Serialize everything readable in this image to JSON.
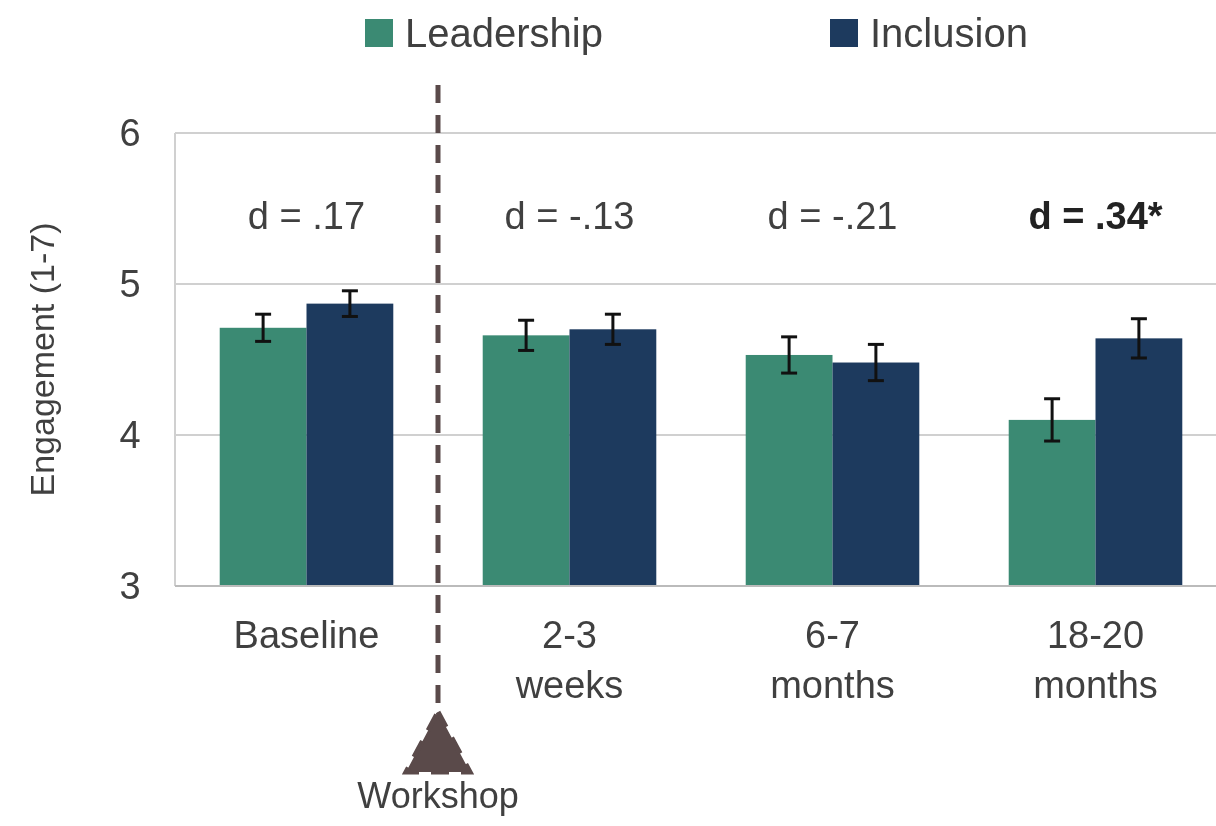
{
  "chart_data": {
    "type": "bar",
    "ylabel": "Engagement (1-7)",
    "categories": [
      "Baseline",
      "2-3 weeks",
      "6-7 months",
      "18-20 months"
    ],
    "series": [
      {
        "name": "Leadership",
        "color": "#3b8a73",
        "values": [
          4.71,
          4.66,
          4.53,
          4.1
        ],
        "errors": [
          0.09,
          0.1,
          0.12,
          0.14
        ]
      },
      {
        "name": "Inclusion",
        "color": "#1d3a5e",
        "values": [
          4.87,
          4.7,
          4.48,
          4.64
        ],
        "errors": [
          0.085,
          0.1,
          0.12,
          0.13
        ]
      }
    ],
    "ylim": [
      3,
      6
    ],
    "yticks": [
      3,
      4,
      5,
      6
    ],
    "grid": "y",
    "legend": "top",
    "annotations": [
      "d = .17",
      "d = -.13",
      "d = -.21",
      "d = .34*",
      "Workshop"
    ]
  }
}
